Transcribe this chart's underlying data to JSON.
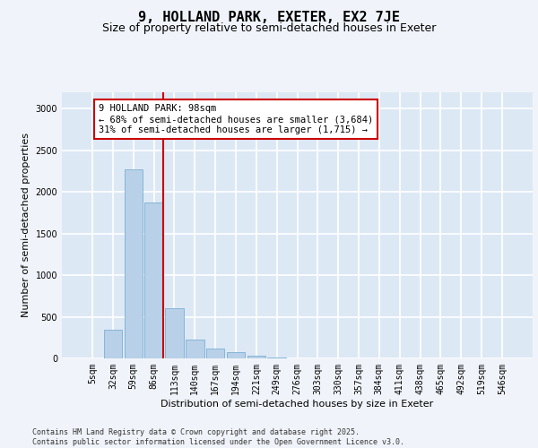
{
  "title": "9, HOLLAND PARK, EXETER, EX2 7JE",
  "subtitle": "Size of property relative to semi-detached houses in Exeter",
  "xlabel": "Distribution of semi-detached houses by size in Exeter",
  "ylabel": "Number of semi-detached properties",
  "categories": [
    "5sqm",
    "32sqm",
    "59sqm",
    "86sqm",
    "113sqm",
    "140sqm",
    "167sqm",
    "194sqm",
    "221sqm",
    "249sqm",
    "276sqm",
    "303sqm",
    "330sqm",
    "357sqm",
    "384sqm",
    "411sqm",
    "438sqm",
    "465sqm",
    "492sqm",
    "519sqm",
    "546sqm"
  ],
  "values": [
    5,
    340,
    2270,
    1870,
    600,
    230,
    120,
    70,
    30,
    10,
    5,
    2,
    0,
    0,
    0,
    0,
    0,
    0,
    0,
    0,
    0
  ],
  "bar_color": "#b8d0e8",
  "bar_edgecolor": "#7aafd4",
  "vline_color": "#cc0000",
  "vline_x": 3.44,
  "annotation_text": "9 HOLLAND PARK: 98sqm\n← 68% of semi-detached houses are smaller (3,684)\n31% of semi-detached houses are larger (1,715) →",
  "annotation_border_color": "#cc0000",
  "ylim": [
    0,
    3200
  ],
  "yticks": [
    0,
    500,
    1000,
    1500,
    2000,
    2500,
    3000
  ],
  "footer_text": "Contains HM Land Registry data © Crown copyright and database right 2025.\nContains public sector information licensed under the Open Government Licence v3.0.",
  "bg_color": "#dde8f5",
  "grid_color": "#ffffff",
  "fig_bg_color": "#f0f4fa",
  "title_fontsize": 11,
  "subtitle_fontsize": 9,
  "axis_label_fontsize": 8,
  "tick_fontsize": 7,
  "footer_fontsize": 6,
  "ann_fontsize": 7.5
}
